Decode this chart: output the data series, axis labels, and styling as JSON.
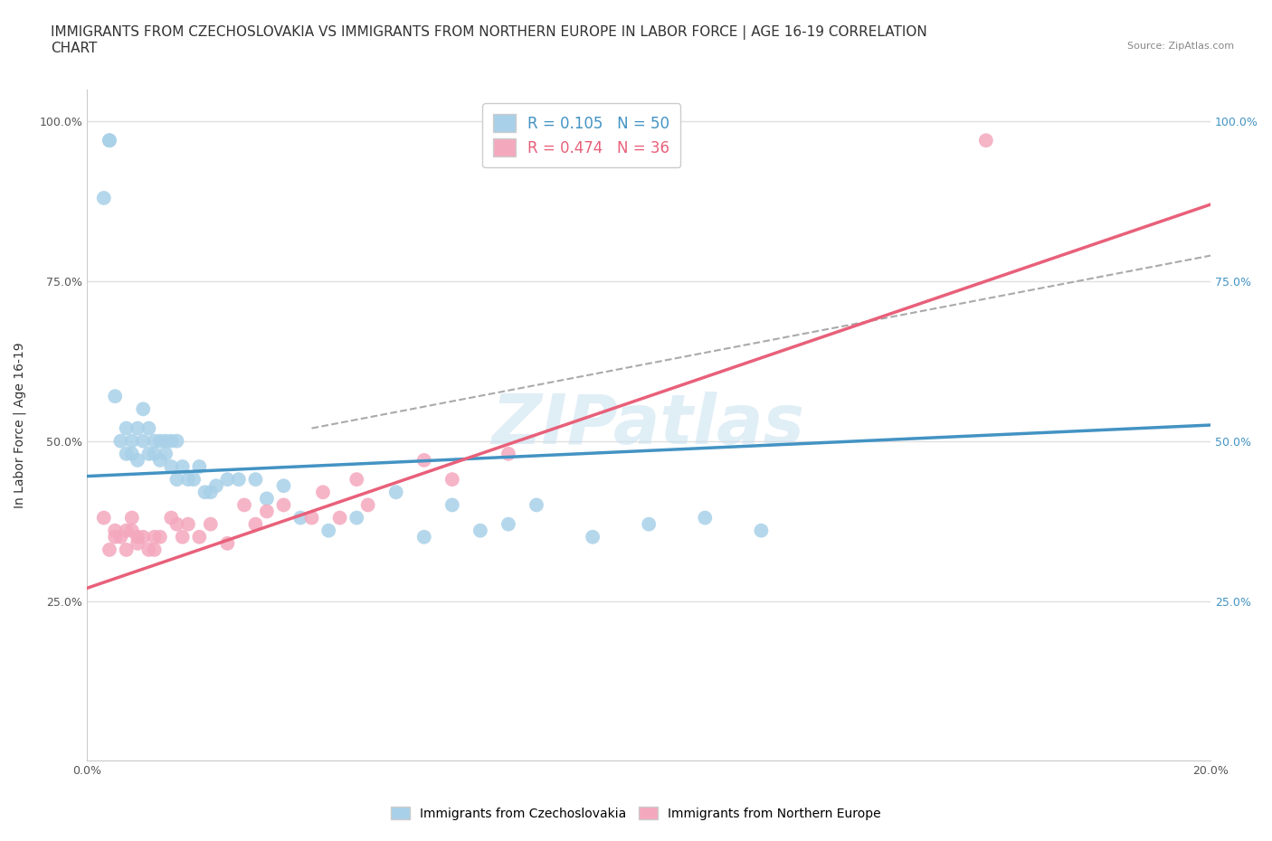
{
  "title": "IMMIGRANTS FROM CZECHOSLOVAKIA VS IMMIGRANTS FROM NORTHERN EUROPE IN LABOR FORCE | AGE 16-19 CORRELATION\nCHART",
  "source_text": "Source: ZipAtlas.com",
  "ylabel": "In Labor Force | Age 16-19",
  "xlim": [
    0.0,
    0.2
  ],
  "ylim": [
    0.0,
    1.05
  ],
  "x_ticks": [
    0.0,
    0.04,
    0.08,
    0.12,
    0.16,
    0.2
  ],
  "x_tick_labels": [
    "0.0%",
    "",
    "",
    "",
    "",
    "20.0%"
  ],
  "y_ticks": [
    0.0,
    0.25,
    0.5,
    0.75,
    1.0
  ],
  "y_tick_labels_left": [
    "",
    "25.0%",
    "50.0%",
    "75.0%",
    "100.0%"
  ],
  "y_tick_labels_right": [
    "",
    "25.0%",
    "50.0%",
    "75.0%",
    "100.0%"
  ],
  "blue_color": "#A8D0E8",
  "pink_color": "#F4A8BE",
  "blue_line_color": "#4393C3",
  "pink_line_color": "#E8607A",
  "legend_blue_R": "R = 0.105",
  "legend_blue_N": "N = 50",
  "legend_pink_R": "R = 0.474",
  "legend_pink_N": "N = 36",
  "blue_scatter_x": [
    0.004,
    0.004,
    0.003,
    0.005,
    0.006,
    0.007,
    0.007,
    0.008,
    0.008,
    0.009,
    0.009,
    0.01,
    0.01,
    0.011,
    0.011,
    0.012,
    0.012,
    0.013,
    0.013,
    0.014,
    0.014,
    0.015,
    0.015,
    0.016,
    0.016,
    0.017,
    0.018,
    0.019,
    0.02,
    0.021,
    0.022,
    0.023,
    0.025,
    0.027,
    0.03,
    0.032,
    0.035,
    0.038,
    0.043,
    0.048,
    0.055,
    0.06,
    0.065,
    0.07,
    0.075,
    0.08,
    0.09,
    0.1,
    0.11,
    0.12
  ],
  "blue_scatter_y": [
    0.97,
    0.97,
    0.88,
    0.57,
    0.5,
    0.52,
    0.48,
    0.5,
    0.48,
    0.52,
    0.47,
    0.55,
    0.5,
    0.52,
    0.48,
    0.48,
    0.5,
    0.47,
    0.5,
    0.48,
    0.5,
    0.5,
    0.46,
    0.5,
    0.44,
    0.46,
    0.44,
    0.44,
    0.46,
    0.42,
    0.42,
    0.43,
    0.44,
    0.44,
    0.44,
    0.41,
    0.43,
    0.38,
    0.36,
    0.38,
    0.42,
    0.35,
    0.4,
    0.36,
    0.37,
    0.4,
    0.35,
    0.37,
    0.38,
    0.36
  ],
  "pink_scatter_x": [
    0.003,
    0.004,
    0.005,
    0.005,
    0.006,
    0.007,
    0.007,
    0.008,
    0.008,
    0.009,
    0.009,
    0.01,
    0.011,
    0.012,
    0.012,
    0.013,
    0.015,
    0.016,
    0.017,
    0.018,
    0.02,
    0.022,
    0.025,
    0.028,
    0.03,
    0.032,
    0.035,
    0.04,
    0.042,
    0.045,
    0.048,
    0.05,
    0.06,
    0.065,
    0.075,
    0.16
  ],
  "pink_scatter_y": [
    0.38,
    0.33,
    0.36,
    0.35,
    0.35,
    0.36,
    0.33,
    0.38,
    0.36,
    0.35,
    0.34,
    0.35,
    0.33,
    0.35,
    0.33,
    0.35,
    0.38,
    0.37,
    0.35,
    0.37,
    0.35,
    0.37,
    0.34,
    0.4,
    0.37,
    0.39,
    0.4,
    0.38,
    0.42,
    0.38,
    0.44,
    0.4,
    0.47,
    0.44,
    0.48,
    0.97
  ],
  "blue_line_x": [
    0.0,
    0.2
  ],
  "blue_line_y": [
    0.445,
    0.525
  ],
  "pink_line_x": [
    0.0,
    0.2
  ],
  "pink_line_y": [
    0.27,
    0.87
  ],
  "gray_line_x": [
    0.04,
    0.2
  ],
  "gray_line_y": [
    0.52,
    0.79
  ],
  "watermark_text": "ZIPatlas",
  "grid_color": "#E0E0E0",
  "background_color": "#FFFFFF",
  "title_fontsize": 11,
  "axis_label_fontsize": 10,
  "tick_fontsize": 9,
  "legend_fontsize": 12
}
